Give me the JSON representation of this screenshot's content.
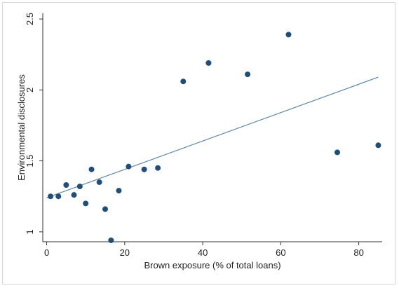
{
  "chart_data": {
    "type": "scatter",
    "title": "",
    "xlabel": "Brown exposure (% of total loans)",
    "ylabel": "Environmental disclosures",
    "xlim": [
      -1,
      86
    ],
    "ylim": [
      0.93,
      2.54
    ],
    "x_ticks": [
      0,
      20,
      40,
      60,
      80
    ],
    "x_tick_labels": [
      "0",
      "20",
      "40",
      "60",
      "80"
    ],
    "y_ticks": [
      1,
      1.5,
      2,
      2.5
    ],
    "y_tick_labels": [
      "1",
      "1.5",
      "2",
      "2.5"
    ],
    "grid": false,
    "legend": "none",
    "series": [
      {
        "marker_color": "#1f4e79",
        "points": [
          {
            "x": 1,
            "y": 1.25
          },
          {
            "x": 3,
            "y": 1.25
          },
          {
            "x": 5,
            "y": 1.33
          },
          {
            "x": 7,
            "y": 1.26
          },
          {
            "x": 8.5,
            "y": 1.32
          },
          {
            "x": 10,
            "y": 1.2
          },
          {
            "x": 11.5,
            "y": 1.44
          },
          {
            "x": 13.5,
            "y": 1.35
          },
          {
            "x": 15,
            "y": 1.16
          },
          {
            "x": 16.5,
            "y": 0.94
          },
          {
            "x": 18.5,
            "y": 1.29
          },
          {
            "x": 21,
            "y": 1.46
          },
          {
            "x": 25,
            "y": 1.44
          },
          {
            "x": 28.5,
            "y": 1.45
          },
          {
            "x": 35,
            "y": 2.06
          },
          {
            "x": 41.5,
            "y": 2.19
          },
          {
            "x": 51.5,
            "y": 2.11
          },
          {
            "x": 62,
            "y": 2.39
          },
          {
            "x": 74.5,
            "y": 1.56
          },
          {
            "x": 85,
            "y": 1.61
          }
        ]
      }
    ],
    "fit_line": {
      "x": [
        0,
        85
      ],
      "y": [
        1.24,
        2.09
      ],
      "color": "#5f87a6"
    }
  }
}
